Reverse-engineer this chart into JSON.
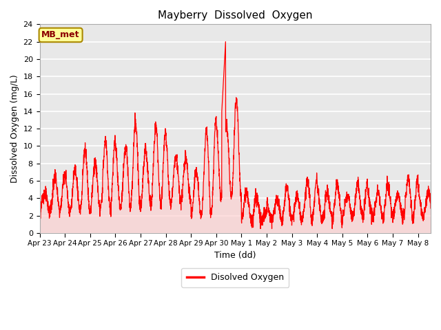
{
  "title": "Mayberry  Dissolved  Oxygen",
  "xlabel": "Time (dd)",
  "ylabel": "Dissolved Oxygen (mg/L)",
  "legend_label": "Disolved Oxygen",
  "annotation_text": "MB_met",
  "ylim": [
    0,
    24
  ],
  "tick_labels": [
    "Apr 23",
    "Apr 24",
    "Apr 25",
    "Apr 26",
    "Apr 27",
    "Apr 28",
    "Apr 29",
    "Apr 30",
    "May 1",
    "May 2",
    "May 3",
    "May 4",
    "May 5",
    "May 6",
    "May 7",
    "May 8"
  ],
  "line_color": "red",
  "fill_color": "#ffcccc",
  "bg_color": "#e8e8e8",
  "annotation_bg": "#ffff99",
  "annotation_border": "#aa8800",
  "grid_color": "white"
}
